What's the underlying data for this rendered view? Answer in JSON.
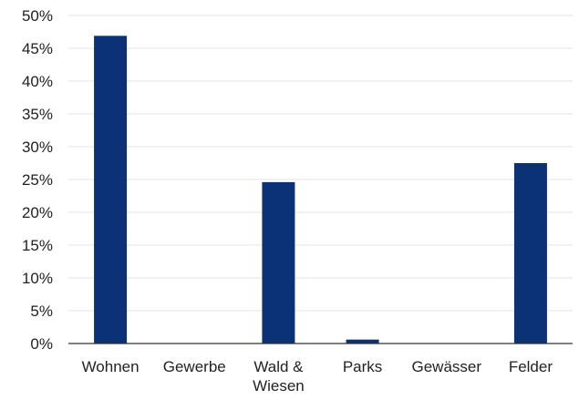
{
  "chart_data": {
    "type": "bar",
    "categories": [
      "Wohnen",
      "Gewerbe",
      "Wald & Wiesen",
      "Parks",
      "Gewässer",
      "Felder"
    ],
    "category_label_lines": [
      [
        "Wohnen"
      ],
      [
        "Gewerbe"
      ],
      [
        "Wald &",
        "Wiesen"
      ],
      [
        "Parks"
      ],
      [
        "Gewässer"
      ],
      [
        "Felder"
      ]
    ],
    "values": [
      46.9,
      0,
      24.6,
      0.6,
      0,
      27.5
    ],
    "ylim": [
      0,
      50
    ],
    "y_ticks": [
      0,
      5,
      10,
      15,
      20,
      25,
      30,
      35,
      40,
      45,
      50
    ],
    "y_tick_format": "{v}%",
    "grid": true,
    "bar_color": "#0a3275",
    "grid_color": "#e3e3e3",
    "axis_color": "#333333"
  }
}
